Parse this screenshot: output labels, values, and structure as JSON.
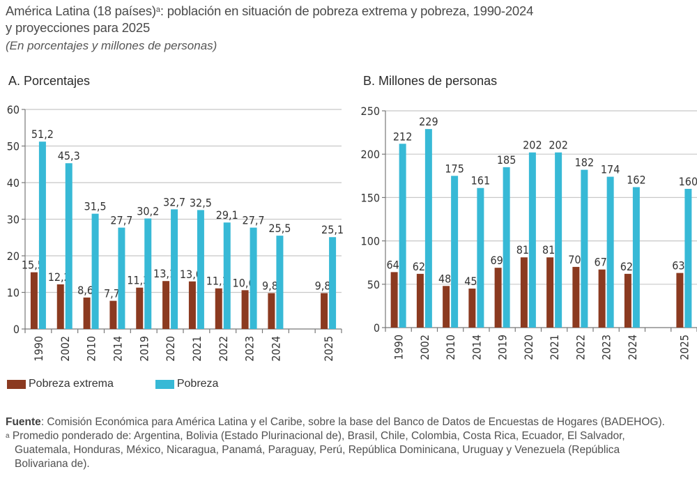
{
  "figure": {
    "title_main": "América Latina (18 países)",
    "title_sup": "a",
    "title_rest": ": población en situación de pobreza extrema y pobreza, 1990-2024",
    "title_line2": "y proyecciones para 2025",
    "subtitle": "(En porcentajes y millones de personas)"
  },
  "colors": {
    "extreme": "#8b3a20",
    "poverty": "#37b9d6",
    "grid": "#c8c8c8",
    "axis": "#777777"
  },
  "legend": [
    {
      "label": "Pobreza extrema",
      "color_key": "extreme"
    },
    {
      "label": "Pobreza",
      "color_key": "poverty"
    }
  ],
  "chart_data": [
    {
      "type": "bar",
      "title": "A. Porcentajes",
      "xlabel": "",
      "ylabel": "",
      "ylim": [
        0,
        60
      ],
      "yticks": [
        0,
        10,
        20,
        30,
        40,
        50,
        60
      ],
      "grid": true,
      "categories": [
        "1990",
        "2002",
        "2010",
        "2014",
        "2019",
        "2020",
        "2021",
        "2022",
        "2023",
        "2024",
        "",
        "2025"
      ],
      "series": [
        {
          "name": "Pobreza extrema",
          "values": [
            15.5,
            12.2,
            8.6,
            7.7,
            11.3,
            13.1,
            13.0,
            11.1,
            10.6,
            9.8,
            null,
            9.8
          ],
          "labels": [
            "15,5",
            "12,2",
            "8,6",
            "7,7",
            "11,3",
            "13,1",
            "13,0",
            "11,1",
            "10,6",
            "9,8",
            "",
            "9,8"
          ]
        },
        {
          "name": "Pobreza",
          "values": [
            51.2,
            45.3,
            31.5,
            27.7,
            30.2,
            32.7,
            32.5,
            29.1,
            27.7,
            25.5,
            null,
            25.1
          ],
          "labels": [
            "51,2",
            "45,3",
            "31,5",
            "27,7",
            "30,2",
            "32,7",
            "32,5",
            "29,1",
            "27,7",
            "25,5",
            "",
            "25,1"
          ]
        }
      ]
    },
    {
      "type": "bar",
      "title": "B. Millones de personas",
      "xlabel": "",
      "ylabel": "",
      "ylim": [
        0,
        250
      ],
      "yticks": [
        0,
        50,
        100,
        150,
        200,
        250
      ],
      "grid": true,
      "categories": [
        "1990",
        "2002",
        "2010",
        "2014",
        "2019",
        "2020",
        "2021",
        "2022",
        "2023",
        "2024",
        "",
        "2025"
      ],
      "series": [
        {
          "name": "Pobreza extrema",
          "values": [
            64,
            62,
            48,
            45,
            69,
            81,
            81,
            70,
            67,
            62,
            null,
            63
          ],
          "labels": [
            "64",
            "62",
            "48",
            "45",
            "69",
            "81",
            "81",
            "70",
            "67",
            "62",
            "",
            "63"
          ]
        },
        {
          "name": "Pobreza",
          "values": [
            212,
            229,
            175,
            161,
            185,
            202,
            202,
            182,
            174,
            162,
            null,
            160
          ],
          "labels": [
            "212",
            "229",
            "175",
            "161",
            "185",
            "202",
            "202",
            "182",
            "174",
            "162",
            "",
            "160"
          ]
        }
      ]
    }
  ],
  "notes": {
    "source_label": "Fuente",
    "source_text": ":  Comisión Económica para América Latina y el Caribe, sobre la base del Banco de Datos de Encuestas de Hogares (BADEHOG).",
    "footnote_mark": "a",
    "footnote_line1": " Promedio ponderado de: Argentina, Bolivia (Estado Plurinacional de), Brasil, Chile, Colombia, Costa Rica, Ecuador, El Salvador,",
    "footnote_line2": "Guatemala, Honduras, México, Nicaragua, Panamá, Paraguay, Perú, República Dominicana, Uruguay y Venezuela (República",
    "footnote_line3": "Bolivariana de)."
  }
}
